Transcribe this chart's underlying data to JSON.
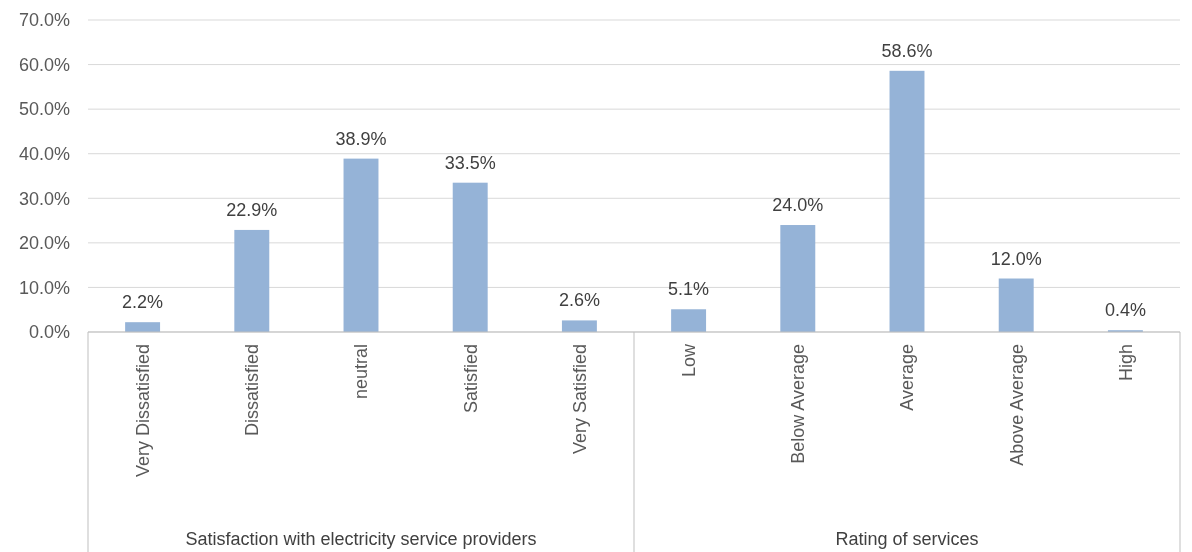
{
  "chart_data": {
    "type": "bar",
    "categories": [
      "Very Dissatisfied",
      "Dissatisfied",
      "neutral",
      "Satisfied",
      "Very Satisfied",
      "Low",
      "Below Average",
      "Average",
      "Above Average",
      "High"
    ],
    "values": [
      2.2,
      22.9,
      38.9,
      33.5,
      2.6,
      5.1,
      24.0,
      58.6,
      12.0,
      0.4
    ],
    "value_labels": [
      "2.2%",
      "22.9%",
      "38.9%",
      "33.5%",
      "2.6%",
      "5.1%",
      "24.0%",
      "58.6%",
      "12.0%",
      "0.4%"
    ],
    "color": "#95b3d7",
    "ylim": [
      0,
      70
    ],
    "yticks": [
      {
        "value": 0,
        "label": "0.0%"
      },
      {
        "value": 10,
        "label": "10.0%"
      },
      {
        "value": 20,
        "label": "20.0%"
      },
      {
        "value": 30,
        "label": "30.0%"
      },
      {
        "value": 40,
        "label": "40.0%"
      },
      {
        "value": 50,
        "label": "50.0%"
      },
      {
        "value": 60,
        "label": "60.0%"
      },
      {
        "value": 70,
        "label": "70.0%"
      }
    ],
    "grid": "y",
    "annotations": [
      "Satisfaction with electricity service providers",
      "Rating of services"
    ]
  }
}
